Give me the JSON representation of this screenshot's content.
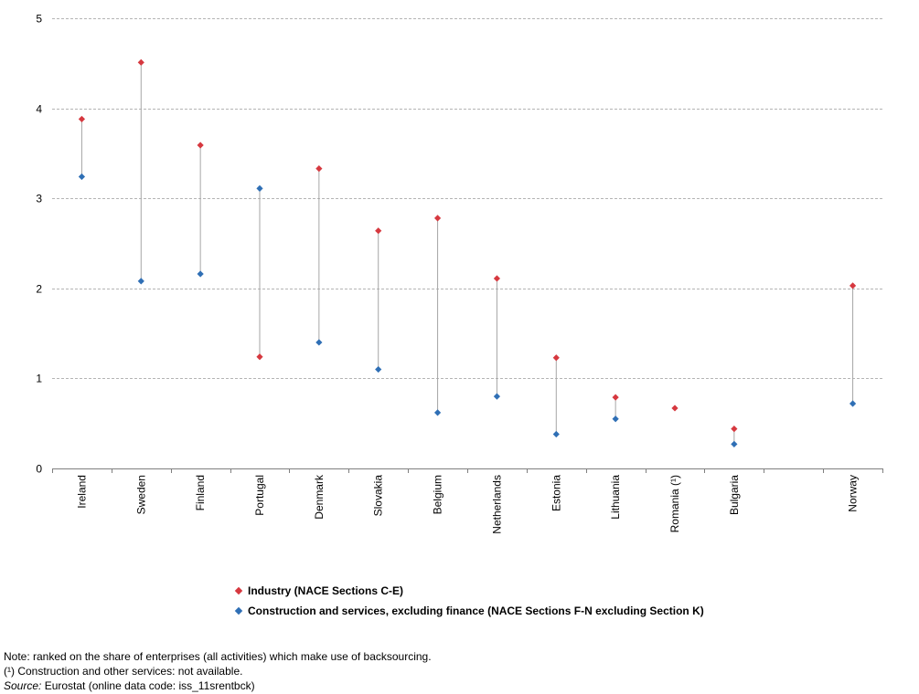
{
  "chart_data": {
    "type": "dot-range",
    "categories": [
      "Ireland",
      "Sweden",
      "Finland",
      "Portugal",
      "Denmark",
      "Slovakia",
      "Belgium",
      "Netherlands",
      "Estonia",
      "Lithuania",
      "Romania (¹)",
      "Bulgaria",
      "",
      "Norway"
    ],
    "series": [
      {
        "name": "Industry (NACE Sections C-E)",
        "color": "#d6383f",
        "values": [
          3.88,
          4.51,
          3.59,
          1.24,
          3.33,
          2.64,
          2.78,
          2.11,
          1.23,
          0.79,
          0.67,
          0.44,
          null,
          2.03
        ]
      },
      {
        "name": "Construction and services, excluding finance (NACE Sections F-N excluding Section K)",
        "color": "#2f6fb5",
        "values": [
          3.24,
          2.08,
          2.16,
          3.11,
          1.4,
          1.1,
          0.62,
          0.8,
          0.38,
          0.55,
          null,
          0.27,
          null,
          0.72
        ]
      }
    ],
    "ylim": [
      0,
      5
    ],
    "yticks": [
      0,
      1,
      2,
      3,
      4,
      5
    ],
    "grid": true,
    "legend_position": "bottom"
  },
  "notes": {
    "note": "Note: ranked on the share of enterprises (all activities) which make use of backsourcing.",
    "footnote": "(¹) Construction and other services: not available.",
    "source_label": "Source:",
    "source_text": " Eurostat (online data code: iss_11srentbck)"
  }
}
